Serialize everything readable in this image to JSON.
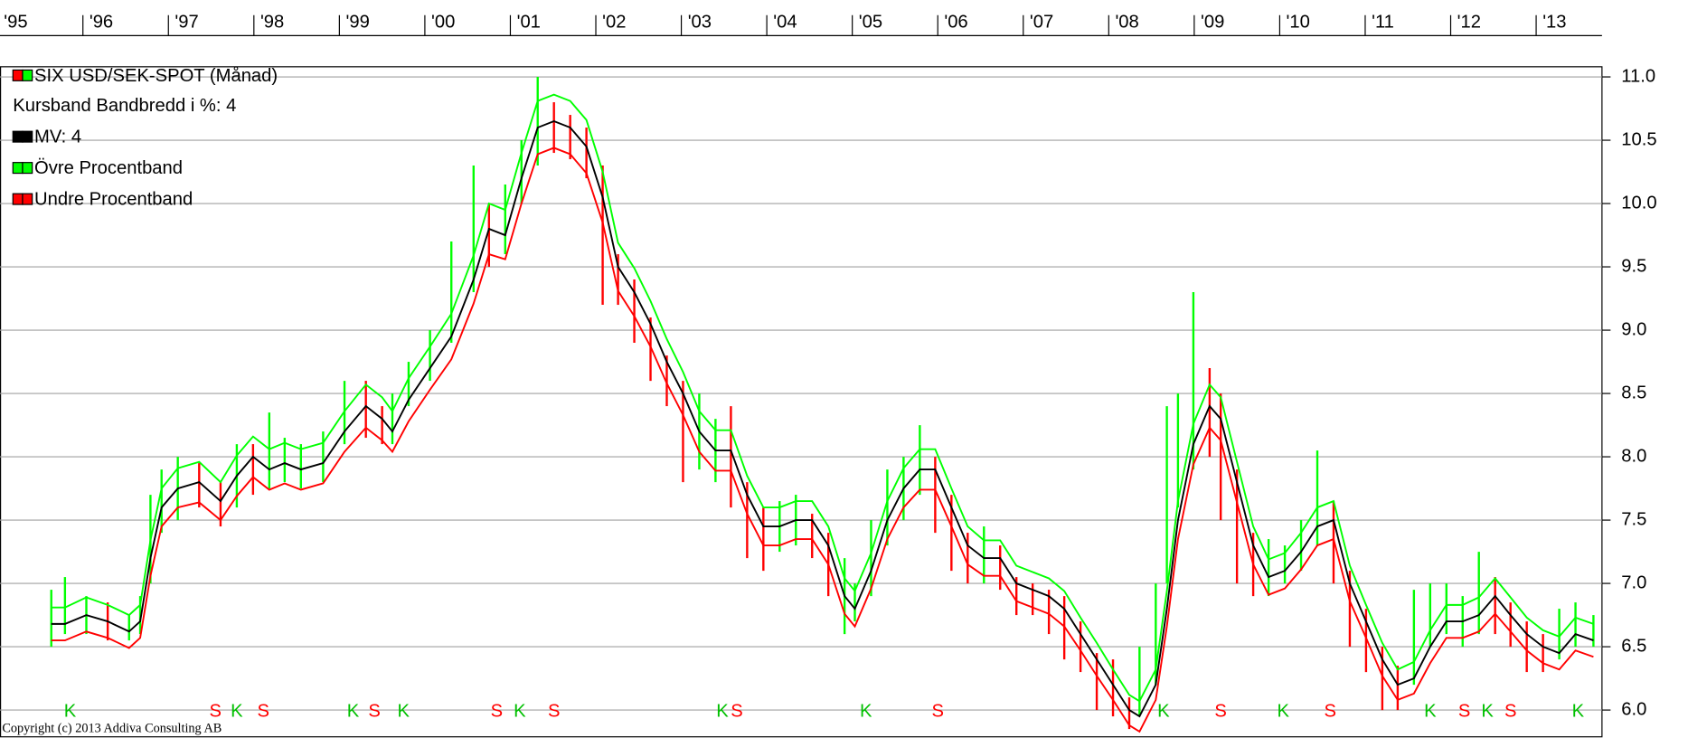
{
  "chart_data": {
    "type": "line",
    "title": "Kursband  Bandbredd i %: 4",
    "copyright": "Copyright (c) 2013 Addiva Consulting AB",
    "xlim": [
      1995.03,
      2013.77
    ],
    "ylim": [
      5.78,
      11.08
    ],
    "grid": true,
    "legend": "upper left",
    "xticks": [
      {
        "value": 1995.0,
        "label": "'95"
      },
      {
        "value": 1996,
        "label": "'96"
      },
      {
        "value": 1997,
        "label": "'97"
      },
      {
        "value": 1998,
        "label": "'98"
      },
      {
        "value": 1999,
        "label": "'99"
      },
      {
        "value": 2000,
        "label": "'00"
      },
      {
        "value": 2001,
        "label": "'01"
      },
      {
        "value": 2002,
        "label": "'02"
      },
      {
        "value": 2003,
        "label": "'03"
      },
      {
        "value": 2004,
        "label": "'04"
      },
      {
        "value": 2005,
        "label": "'05"
      },
      {
        "value": 2006,
        "label": "'06"
      },
      {
        "value": 2007,
        "label": "'07"
      },
      {
        "value": 2008,
        "label": "'08"
      },
      {
        "value": 2009,
        "label": "'09"
      },
      {
        "value": 2010,
        "label": "'10"
      },
      {
        "value": 2011,
        "label": "'11"
      },
      {
        "value": 2012,
        "label": "'12"
      },
      {
        "value": 2013,
        "label": "'13"
      }
    ],
    "yticks": [
      {
        "value": 6,
        "label": "6.0"
      },
      6.5,
      {
        "value": 7,
        "label": "7.0"
      },
      7.5,
      {
        "value": 8,
        "label": "8.0"
      },
      8.5,
      {
        "value": 9,
        "label": "9.0"
      },
      9.5,
      {
        "value": 10,
        "label": "10.0"
      },
      10.5,
      {
        "value": 11,
        "label": "11.0"
      }
    ],
    "x": [
      1995.63,
      1995.79,
      1996.04,
      1996.29,
      1996.54,
      1996.67,
      1996.79,
      1996.92,
      1997.11,
      1997.36,
      1997.61,
      1997.8,
      1997.99,
      1998.18,
      1998.36,
      1998.55,
      1998.81,
      1999.06,
      1999.31,
      1999.5,
      1999.62,
      1999.81,
      2000.06,
      2000.31,
      2000.57,
      2000.75,
      2000.94,
      2001.13,
      2001.32,
      2001.51,
      2001.7,
      2001.89,
      2002.08,
      2002.26,
      2002.45,
      2002.64,
      2002.83,
      2003.02,
      2003.21,
      2003.4,
      2003.58,
      2003.77,
      2003.96,
      2004.15,
      2004.34,
      2004.53,
      2004.72,
      2004.91,
      2005.03,
      2005.22,
      2005.41,
      2005.6,
      2005.79,
      2005.97,
      2006.16,
      2006.35,
      2006.54,
      2006.73,
      2006.92,
      2007.11,
      2007.3,
      2007.48,
      2007.67,
      2007.86,
      2008.05,
      2008.24,
      2008.36,
      2008.55,
      2008.68,
      2008.81,
      2008.99,
      2009.18,
      2009.31,
      2009.5,
      2009.69,
      2009.87,
      2010.06,
      2010.25,
      2010.44,
      2010.63,
      2010.82,
      2011.01,
      2011.2,
      2011.38,
      2011.57,
      2011.76,
      2011.95,
      2012.14,
      2012.33,
      2012.52,
      2012.7,
      2012.89,
      2013.08,
      2013.27,
      2013.46,
      2013.67
    ],
    "price": {
      "name": "SIX USD/SEK-SPOT (Månad)",
      "up_color": "#00ff00",
      "down_color": "#ff0000",
      "high": [
        6.95,
        7.05,
        6.9,
        6.85,
        6.75,
        6.9,
        7.7,
        7.9,
        8.0,
        7.95,
        7.8,
        8.1,
        8.1,
        8.35,
        8.15,
        8.1,
        8.2,
        8.6,
        8.6,
        8.4,
        8.5,
        8.75,
        9.0,
        9.7,
        10.3,
        10.0,
        10.15,
        10.5,
        11.0,
        10.8,
        10.7,
        10.6,
        10.3,
        9.6,
        9.4,
        9.1,
        8.8,
        8.6,
        8.5,
        8.3,
        8.4,
        7.8,
        7.6,
        7.65,
        7.7,
        7.55,
        7.4,
        7.2,
        7.0,
        7.5,
        7.9,
        8.0,
        8.25,
        8.0,
        7.7,
        7.4,
        7.45,
        7.3,
        7.05,
        7.0,
        6.95,
        6.9,
        6.7,
        6.45,
        6.4,
        6.1,
        6.5,
        7.0,
        8.4,
        8.5,
        9.3,
        8.7,
        8.5,
        7.9,
        7.4,
        7.35,
        7.3,
        7.5,
        8.05,
        7.65,
        7.1,
        6.8,
        6.5,
        6.35,
        6.95,
        7.0,
        7.0,
        6.9,
        7.25,
        7.05,
        6.85,
        6.7,
        6.6,
        6.8,
        6.85,
        6.75
      ],
      "low": [
        6.5,
        6.6,
        6.6,
        6.55,
        6.55,
        6.6,
        7.0,
        7.4,
        7.5,
        7.6,
        7.45,
        7.6,
        7.7,
        7.75,
        7.8,
        7.75,
        7.8,
        8.1,
        8.15,
        8.1,
        8.1,
        8.4,
        8.6,
        8.9,
        9.3,
        9.5,
        9.6,
        10.0,
        10.3,
        10.4,
        10.35,
        10.2,
        9.2,
        9.2,
        8.9,
        8.6,
        8.4,
        7.8,
        7.9,
        7.8,
        7.6,
        7.2,
        7.1,
        7.25,
        7.3,
        7.2,
        6.9,
        6.6,
        6.7,
        6.9,
        7.3,
        7.5,
        7.7,
        7.4,
        7.1,
        7.0,
        7.0,
        6.95,
        6.75,
        6.75,
        6.6,
        6.4,
        6.3,
        6.0,
        5.95,
        5.85,
        5.95,
        6.2,
        7.0,
        7.6,
        7.9,
        8.0,
        7.5,
        7.0,
        6.9,
        6.9,
        7.0,
        7.1,
        7.3,
        7.0,
        6.5,
        6.3,
        6.0,
        6.0,
        6.2,
        6.5,
        6.6,
        6.5,
        6.6,
        6.6,
        6.5,
        6.3,
        6.3,
        6.4,
        6.5,
        6.5
      ]
    },
    "series": [
      {
        "name": "MV: 4",
        "color": "#000000",
        "values": [
          6.68,
          6.68,
          6.75,
          6.7,
          6.62,
          6.7,
          7.2,
          7.6,
          7.75,
          7.8,
          7.65,
          7.85,
          8.0,
          7.9,
          7.95,
          7.9,
          7.95,
          8.2,
          8.4,
          8.3,
          8.2,
          8.45,
          8.7,
          8.95,
          9.4,
          9.8,
          9.75,
          10.2,
          10.6,
          10.65,
          10.6,
          10.45,
          10.05,
          9.5,
          9.3,
          9.05,
          8.75,
          8.5,
          8.2,
          8.05,
          8.05,
          7.7,
          7.45,
          7.45,
          7.5,
          7.5,
          7.3,
          6.9,
          6.8,
          7.1,
          7.5,
          7.75,
          7.9,
          7.9,
          7.6,
          7.3,
          7.2,
          7.2,
          7.0,
          6.95,
          6.9,
          6.8,
          6.6,
          6.4,
          6.2,
          6.0,
          5.95,
          6.2,
          6.8,
          7.5,
          8.1,
          8.4,
          8.3,
          7.8,
          7.3,
          7.05,
          7.1,
          7.25,
          7.45,
          7.5,
          7.0,
          6.7,
          6.4,
          6.2,
          6.25,
          6.5,
          6.7,
          6.7,
          6.75,
          6.9,
          6.75,
          6.6,
          6.5,
          6.45,
          6.6,
          6.55
        ]
      },
      {
        "name": "Övre Procentband",
        "color": "#00ff00",
        "values": [
          6.81,
          6.81,
          6.89,
          6.83,
          6.75,
          6.83,
          7.34,
          7.75,
          7.91,
          7.96,
          7.8,
          8.01,
          8.16,
          8.06,
          8.11,
          8.06,
          8.11,
          8.36,
          8.57,
          8.47,
          8.36,
          8.62,
          8.87,
          9.13,
          9.59,
          10.0,
          9.95,
          10.4,
          10.81,
          10.86,
          10.81,
          10.66,
          10.25,
          9.69,
          9.49,
          9.23,
          8.93,
          8.67,
          8.36,
          8.21,
          8.21,
          7.85,
          7.6,
          7.6,
          7.65,
          7.65,
          7.45,
          7.04,
          6.94,
          7.24,
          7.65,
          7.91,
          8.06,
          8.06,
          7.75,
          7.45,
          7.34,
          7.34,
          7.14,
          7.09,
          7.04,
          6.94,
          6.73,
          6.53,
          6.32,
          6.12,
          6.07,
          6.32,
          6.94,
          7.65,
          8.26,
          8.57,
          8.47,
          7.96,
          7.45,
          7.19,
          7.24,
          7.4,
          7.6,
          7.65,
          7.14,
          6.83,
          6.53,
          6.32,
          6.38,
          6.63,
          6.83,
          6.83,
          6.89,
          7.04,
          6.89,
          6.73,
          6.63,
          6.58,
          6.73,
          6.68
        ]
      },
      {
        "name": "Undre Procentband",
        "color": "#ff0000",
        "values": [
          6.55,
          6.55,
          6.62,
          6.57,
          6.49,
          6.57,
          7.06,
          7.45,
          7.6,
          7.64,
          7.5,
          7.69,
          7.84,
          7.74,
          7.79,
          7.74,
          7.79,
          8.04,
          8.23,
          8.13,
          8.04,
          8.28,
          8.53,
          8.77,
          9.21,
          9.6,
          9.56,
          10.0,
          10.39,
          10.44,
          10.39,
          10.24,
          9.85,
          9.31,
          9.11,
          8.87,
          8.58,
          8.33,
          8.04,
          7.89,
          7.89,
          7.55,
          7.3,
          7.3,
          7.35,
          7.35,
          7.15,
          6.76,
          6.66,
          6.96,
          7.35,
          7.6,
          7.74,
          7.74,
          7.45,
          7.15,
          7.06,
          7.06,
          6.86,
          6.81,
          6.76,
          6.66,
          6.47,
          6.27,
          6.08,
          5.88,
          5.83,
          6.08,
          6.66,
          7.35,
          7.94,
          8.23,
          8.13,
          7.64,
          7.15,
          6.91,
          6.96,
          7.11,
          7.3,
          7.35,
          6.86,
          6.57,
          6.27,
          6.08,
          6.13,
          6.37,
          6.57,
          6.57,
          6.62,
          6.76,
          6.62,
          6.47,
          6.37,
          6.32,
          6.47,
          6.42
        ]
      }
    ],
    "signal_colors": {
      "K": "#00c000",
      "S": "#ff0000"
    },
    "signals": [
      {
        "x": 1995.85,
        "label": "K"
      },
      {
        "x": 1997.55,
        "label": "S"
      },
      {
        "x": 1997.8,
        "label": "K"
      },
      {
        "x": 1998.11,
        "label": "S"
      },
      {
        "x": 1999.16,
        "label": "K"
      },
      {
        "x": 1999.41,
        "label": "S"
      },
      {
        "x": 1999.75,
        "label": "K"
      },
      {
        "x": 2000.84,
        "label": "S"
      },
      {
        "x": 2001.11,
        "label": "K"
      },
      {
        "x": 2001.51,
        "label": "S"
      },
      {
        "x": 2003.48,
        "label": "K"
      },
      {
        "x": 2003.65,
        "label": "S"
      },
      {
        "x": 2005.16,
        "label": "K"
      },
      {
        "x": 2006.0,
        "label": "S"
      },
      {
        "x": 2008.64,
        "label": "K"
      },
      {
        "x": 2009.31,
        "label": "S"
      },
      {
        "x": 2010.04,
        "label": "K"
      },
      {
        "x": 2010.59,
        "label": "S"
      },
      {
        "x": 2011.76,
        "label": "K"
      },
      {
        "x": 2012.16,
        "label": "S"
      },
      {
        "x": 2012.43,
        "label": "K"
      },
      {
        "x": 2012.7,
        "label": "S"
      },
      {
        "x": 2013.49,
        "label": "K"
      }
    ]
  }
}
